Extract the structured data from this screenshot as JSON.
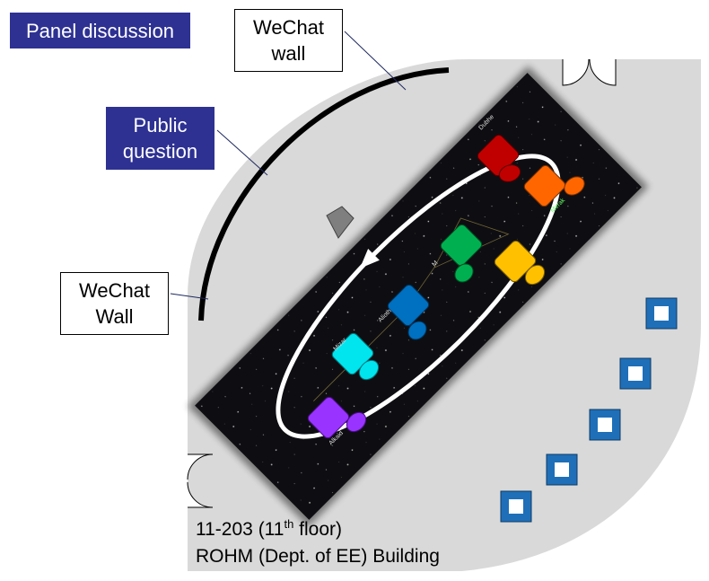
{
  "labels": {
    "panel_discussion": "Panel discussion",
    "public_question_line1": "Public",
    "public_question_line2": "question",
    "wechat_wall_top_line1": "WeChat",
    "wechat_wall_top_line2": "wall",
    "wechat_wall_left_line1": "WeChat",
    "wechat_wall_left_line2": "Wall"
  },
  "room": {
    "number": "11-203",
    "floor_open": "(11",
    "floor_sup": "th",
    "floor_close": " floor)",
    "building": "ROHM (Dept. of EE) Building"
  },
  "stars": {
    "dubhe": "Dubhe",
    "merak": "Merak",
    "megrez": "M",
    "alioth": "Alioth",
    "mizar": "Mizar",
    "alkaid": "Alkaid"
  },
  "colors": {
    "floor": "#d9d9d9",
    "label_box": "#2e3192",
    "red": "#c00000",
    "orange": "#ff6600",
    "yellow": "#ffc000",
    "green": "#00b050",
    "blue": "#0070c0",
    "cyan": "#00e5ee",
    "purple": "#9933ff",
    "chair": "#1f6fb8"
  }
}
